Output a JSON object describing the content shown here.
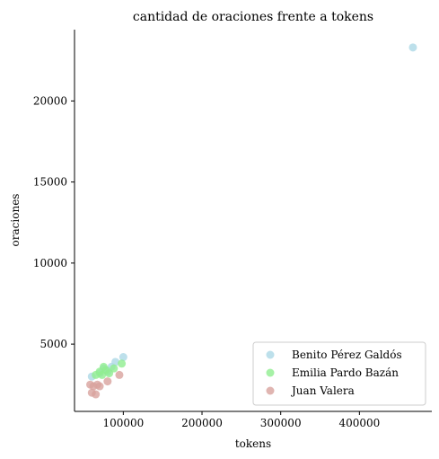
{
  "chart_data": {
    "type": "scatter",
    "title": "cantidad de oraciones frente a tokens",
    "xlabel": "tokens",
    "ylabel": "oraciones",
    "xlim": [
      38000,
      492000
    ],
    "ylim": [
      850,
      24400
    ],
    "xticks": [
      100000,
      200000,
      300000,
      400000
    ],
    "yticks": [
      5000,
      10000,
      15000,
      20000
    ],
    "grid": false,
    "legend_position": "lower-right",
    "series": [
      {
        "name": "Benito Pérez Galdós",
        "color": "#add8e6",
        "points": [
          [
            60000,
            3000
          ],
          [
            70000,
            3200
          ],
          [
            75000,
            3500
          ],
          [
            80000,
            3300
          ],
          [
            85000,
            3600
          ],
          [
            90000,
            3900
          ],
          [
            100000,
            4200
          ],
          [
            468000,
            23300
          ]
        ]
      },
      {
        "name": "Emilia Pardo Bazán",
        "color": "#90ee90",
        "points": [
          [
            65000,
            3100
          ],
          [
            70000,
            3300
          ],
          [
            73000,
            3100
          ],
          [
            75000,
            3600
          ],
          [
            78000,
            3400
          ],
          [
            82000,
            3200
          ],
          [
            88000,
            3500
          ],
          [
            98000,
            3800
          ]
        ]
      },
      {
        "name": "Juan Valera",
        "color": "#d8a29d",
        "points": [
          [
            58000,
            2500
          ],
          [
            60000,
            2000
          ],
          [
            62000,
            2400
          ],
          [
            65000,
            1900
          ],
          [
            67000,
            2500
          ],
          [
            70000,
            2400
          ],
          [
            80000,
            2700
          ],
          [
            95000,
            3100
          ]
        ]
      }
    ]
  }
}
